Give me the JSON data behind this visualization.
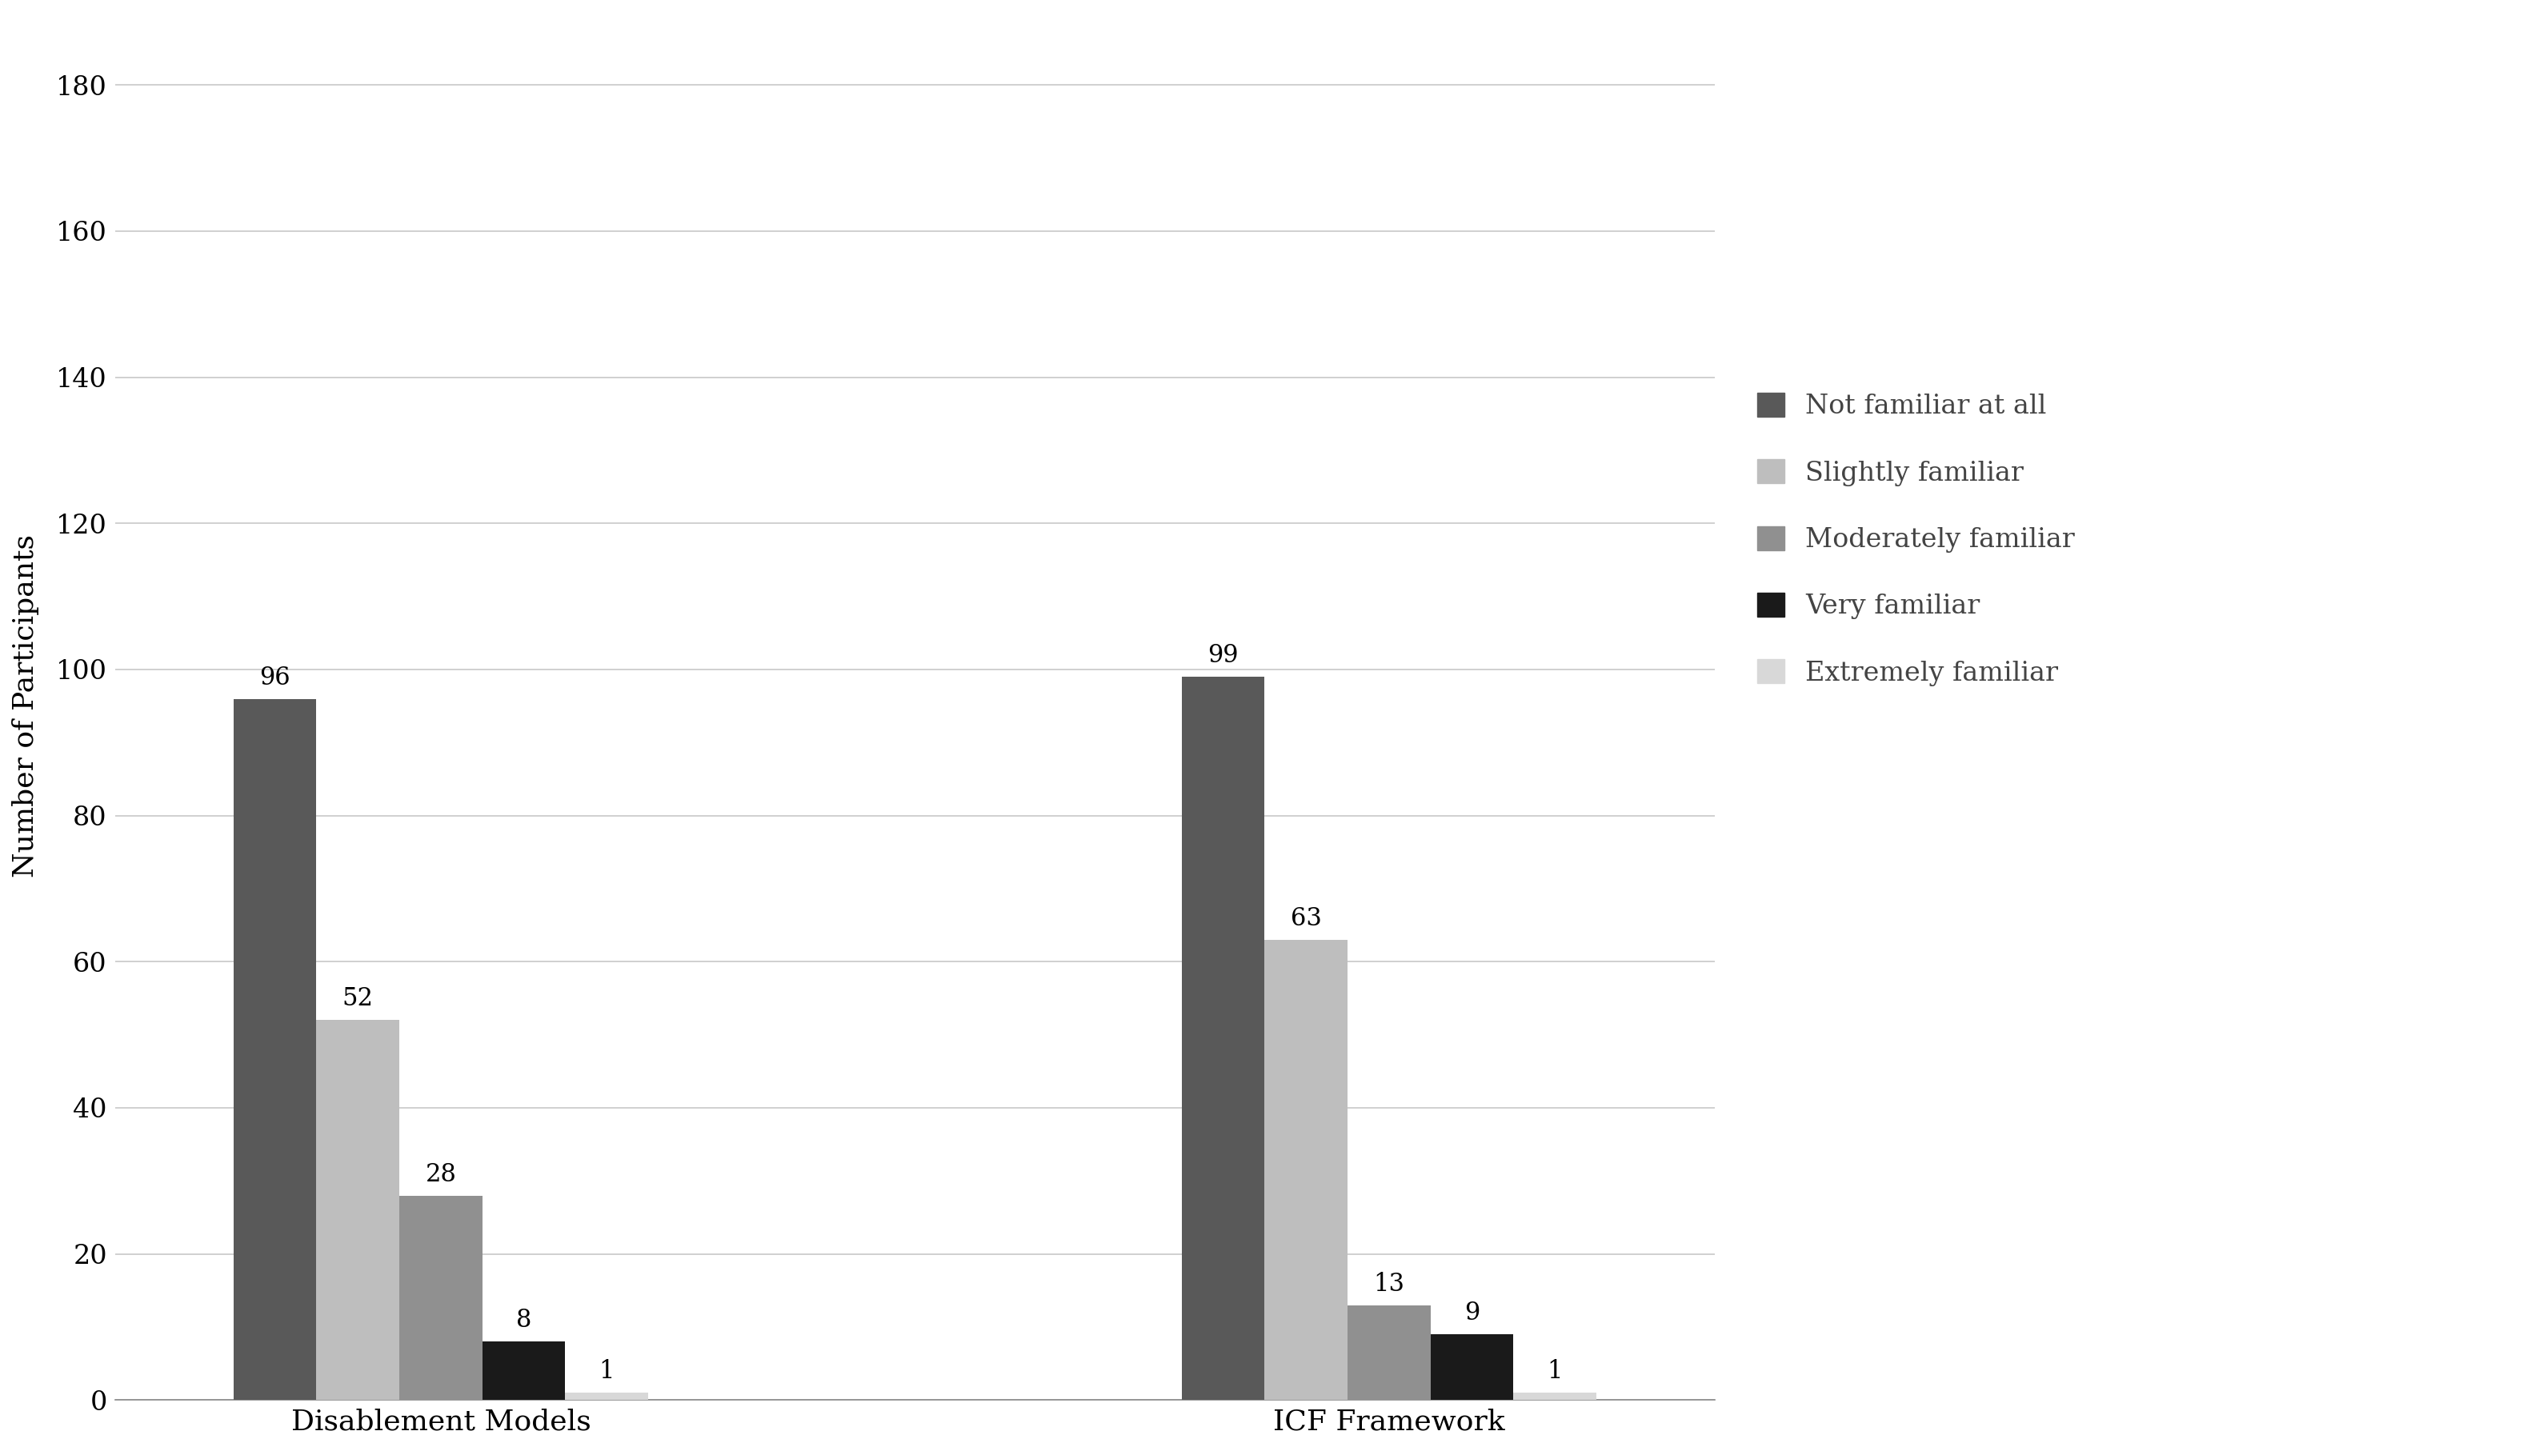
{
  "categories": [
    "Disablement Models",
    "ICF Framework"
  ],
  "series": [
    {
      "label": "Not familiar at all",
      "values": [
        96,
        99
      ],
      "color": "#595959"
    },
    {
      "label": "Slightly familiar",
      "values": [
        52,
        63
      ],
      "color": "#BEBEBE"
    },
    {
      "label": "Moderately familiar",
      "values": [
        28,
        13
      ],
      "color": "#909090"
    },
    {
      "label": "Very familiar",
      "values": [
        8,
        9
      ],
      "color": "#1A1A1A"
    },
    {
      "label": "Extremely familiar",
      "values": [
        1,
        1
      ],
      "color": "#D8D8D8"
    }
  ],
  "ylabel": "Number of Participants",
  "ylim": [
    0,
    190
  ],
  "yticks": [
    0,
    20,
    40,
    60,
    80,
    100,
    120,
    140,
    160,
    180
  ],
  "background_color": "#FFFFFF",
  "grid_color": "#C8C8C8",
  "bar_width": 0.14,
  "group_centers": [
    1.0,
    2.6
  ],
  "label_fontsize": 26,
  "tick_fontsize": 24,
  "legend_fontsize": 24,
  "annotation_fontsize": 22
}
